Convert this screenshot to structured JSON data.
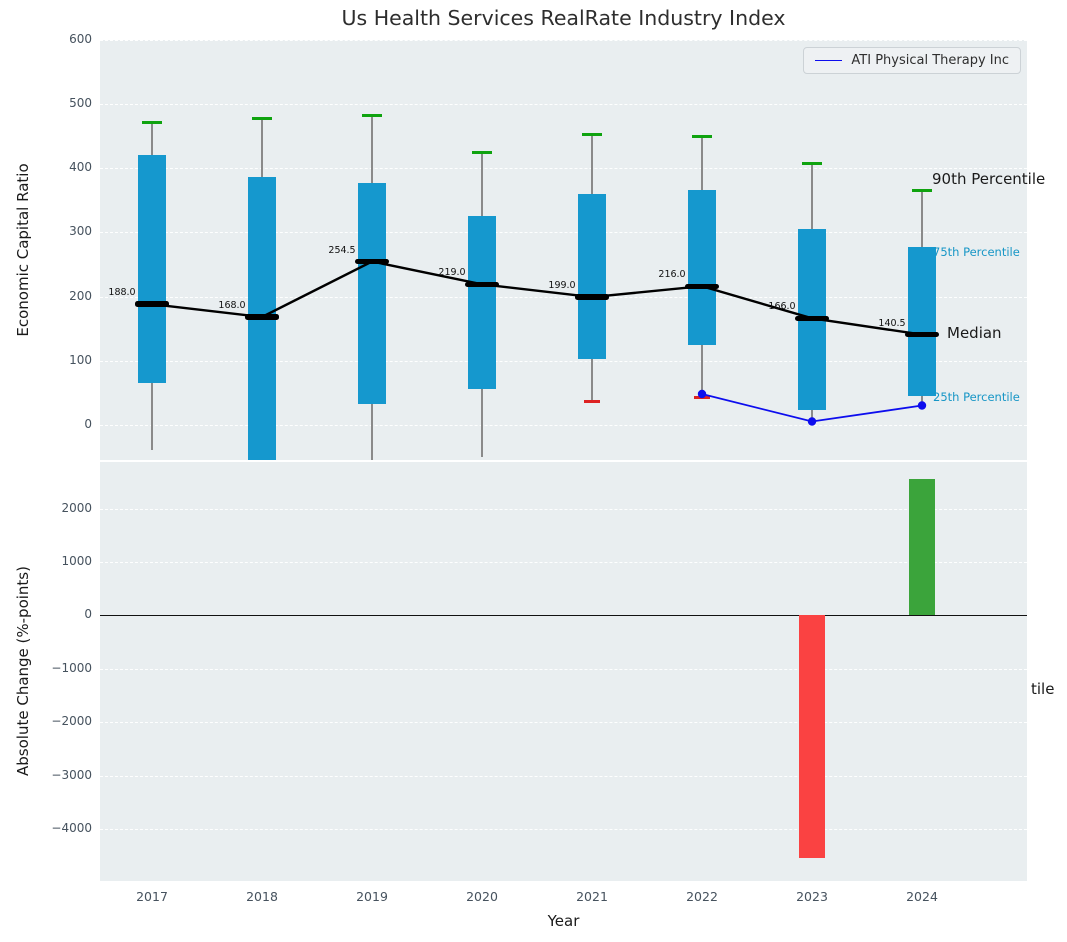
{
  "figure": {
    "background": "#ffffff",
    "panel_background": "#e9eef0"
  },
  "chart_data": [
    {
      "type": "box",
      "title": "Us Health Services RealRate Industry Index",
      "ylabel": "Economic Capital Ratio",
      "ylim": [
        -55,
        600
      ],
      "yticks": [
        {
          "v": 0,
          "label": "0"
        },
        {
          "v": 100,
          "label": "100"
        },
        {
          "v": 200,
          "label": "200"
        },
        {
          "v": 300,
          "label": "300"
        },
        {
          "v": 400,
          "label": "400"
        },
        {
          "v": 500,
          "label": "500"
        },
        {
          "v": 600,
          "label": "600"
        }
      ],
      "categories": [
        "2017",
        "2018",
        "2019",
        "2020",
        "2021",
        "2022",
        "2023",
        "2024"
      ],
      "box_color": "#1598ce",
      "p75": [
        420,
        386,
        377,
        326,
        360,
        366,
        305,
        277
      ],
      "p25": [
        65,
        -70,
        33,
        55,
        103,
        125,
        23,
        44
      ],
      "p90": [
        472,
        477,
        482,
        425,
        452,
        449,
        408,
        366
      ],
      "whisker_low": [
        -40,
        -80,
        -65,
        -50,
        36,
        42,
        4,
        27
      ],
      "p10_caps": [
        null,
        null,
        null,
        null,
        36,
        42,
        null,
        null
      ],
      "cap_color_high": "#0fa30f",
      "cap_color_low": "#dd2222",
      "median": [
        188.0,
        168.0,
        254.5,
        219.0,
        199.0,
        216.0,
        166.0,
        140.5
      ],
      "median_labels": [
        "188.0",
        "168.0",
        "254.5",
        "219.0",
        "199.0",
        "216.0",
        "166.0",
        "140.5"
      ],
      "series": [
        {
          "name": "ATI Physical Therapy Inc",
          "color": "#0d0dee",
          "x": [
            "2022",
            "2023",
            "2024"
          ],
          "values": [
            48,
            5,
            30
          ]
        }
      ],
      "legend": {
        "position": "upper right",
        "entries": [
          "ATI Physical Therapy Inc"
        ]
      },
      "right_labels": [
        {
          "text": "90th Percentile",
          "value": 380,
          "x": 832,
          "color": "#1a1a1a",
          "size": 15
        },
        {
          "text": "75th Percentile",
          "value": 268,
          "x": 833,
          "color": "#1796c6",
          "size": 11.5
        },
        {
          "text": "Median",
          "value": 140,
          "x": 847,
          "color": "#1a1a1a",
          "size": 15
        },
        {
          "text": "25th Percentile",
          "value": 42,
          "x": 833,
          "color": "#1796c6",
          "size": 11.5
        }
      ]
    },
    {
      "type": "bar",
      "ylabel": "Absolute Change (%-points)",
      "xlabel": "Year",
      "ylim": [
        -4970,
        2870
      ],
      "yticks": [
        {
          "v": 2000,
          "label": "2000"
        },
        {
          "v": 1000,
          "label": "1000"
        },
        {
          "v": 0,
          "label": "0"
        },
        {
          "v": -1000,
          "label": "−1000"
        },
        {
          "v": -2000,
          "label": "−2000"
        },
        {
          "v": -3000,
          "label": "−3000"
        },
        {
          "v": -4000,
          "label": "−4000"
        }
      ],
      "categories": [
        "2017",
        "2018",
        "2019",
        "2020",
        "2021",
        "2022",
        "2023",
        "2024"
      ],
      "values": [
        null,
        null,
        null,
        null,
        null,
        null,
        -4540,
        2550
      ],
      "positive_color": "#3ba43b",
      "negative_color": "#fa4242",
      "clipped_right_label": "tile"
    }
  ]
}
